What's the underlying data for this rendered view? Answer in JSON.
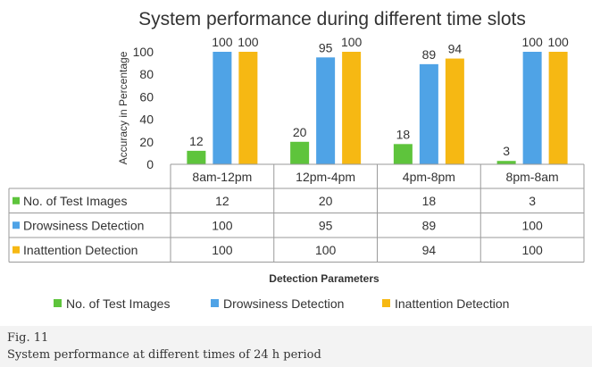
{
  "chart_data": {
    "type": "bar",
    "title": "System performance during different time slots",
    "ylabel": "Accuracy in Percentage",
    "xlabel": "Detection Parameters",
    "ylim": [
      0,
      100
    ],
    "yticks": [
      0,
      20,
      40,
      60,
      80,
      100
    ],
    "categories": [
      "8am-12pm",
      "12pm-4pm",
      "4pm-8pm",
      "8pm-8am"
    ],
    "series": [
      {
        "name": "No. of Test Images",
        "color": "#5ec43c",
        "values": [
          12,
          20,
          18,
          3
        ]
      },
      {
        "name": "Drowsiness Detection",
        "color": "#4fa3e6",
        "values": [
          100,
          95,
          89,
          100
        ]
      },
      {
        "name": "Inattention Detection",
        "color": "#f6b813",
        "values": [
          100,
          100,
          94,
          100
        ]
      }
    ],
    "legend_position": "bottom",
    "grid": false,
    "data_table": true
  },
  "figure": {
    "label": "Fig. 11",
    "caption": "System performance at different times of 24 h period"
  }
}
